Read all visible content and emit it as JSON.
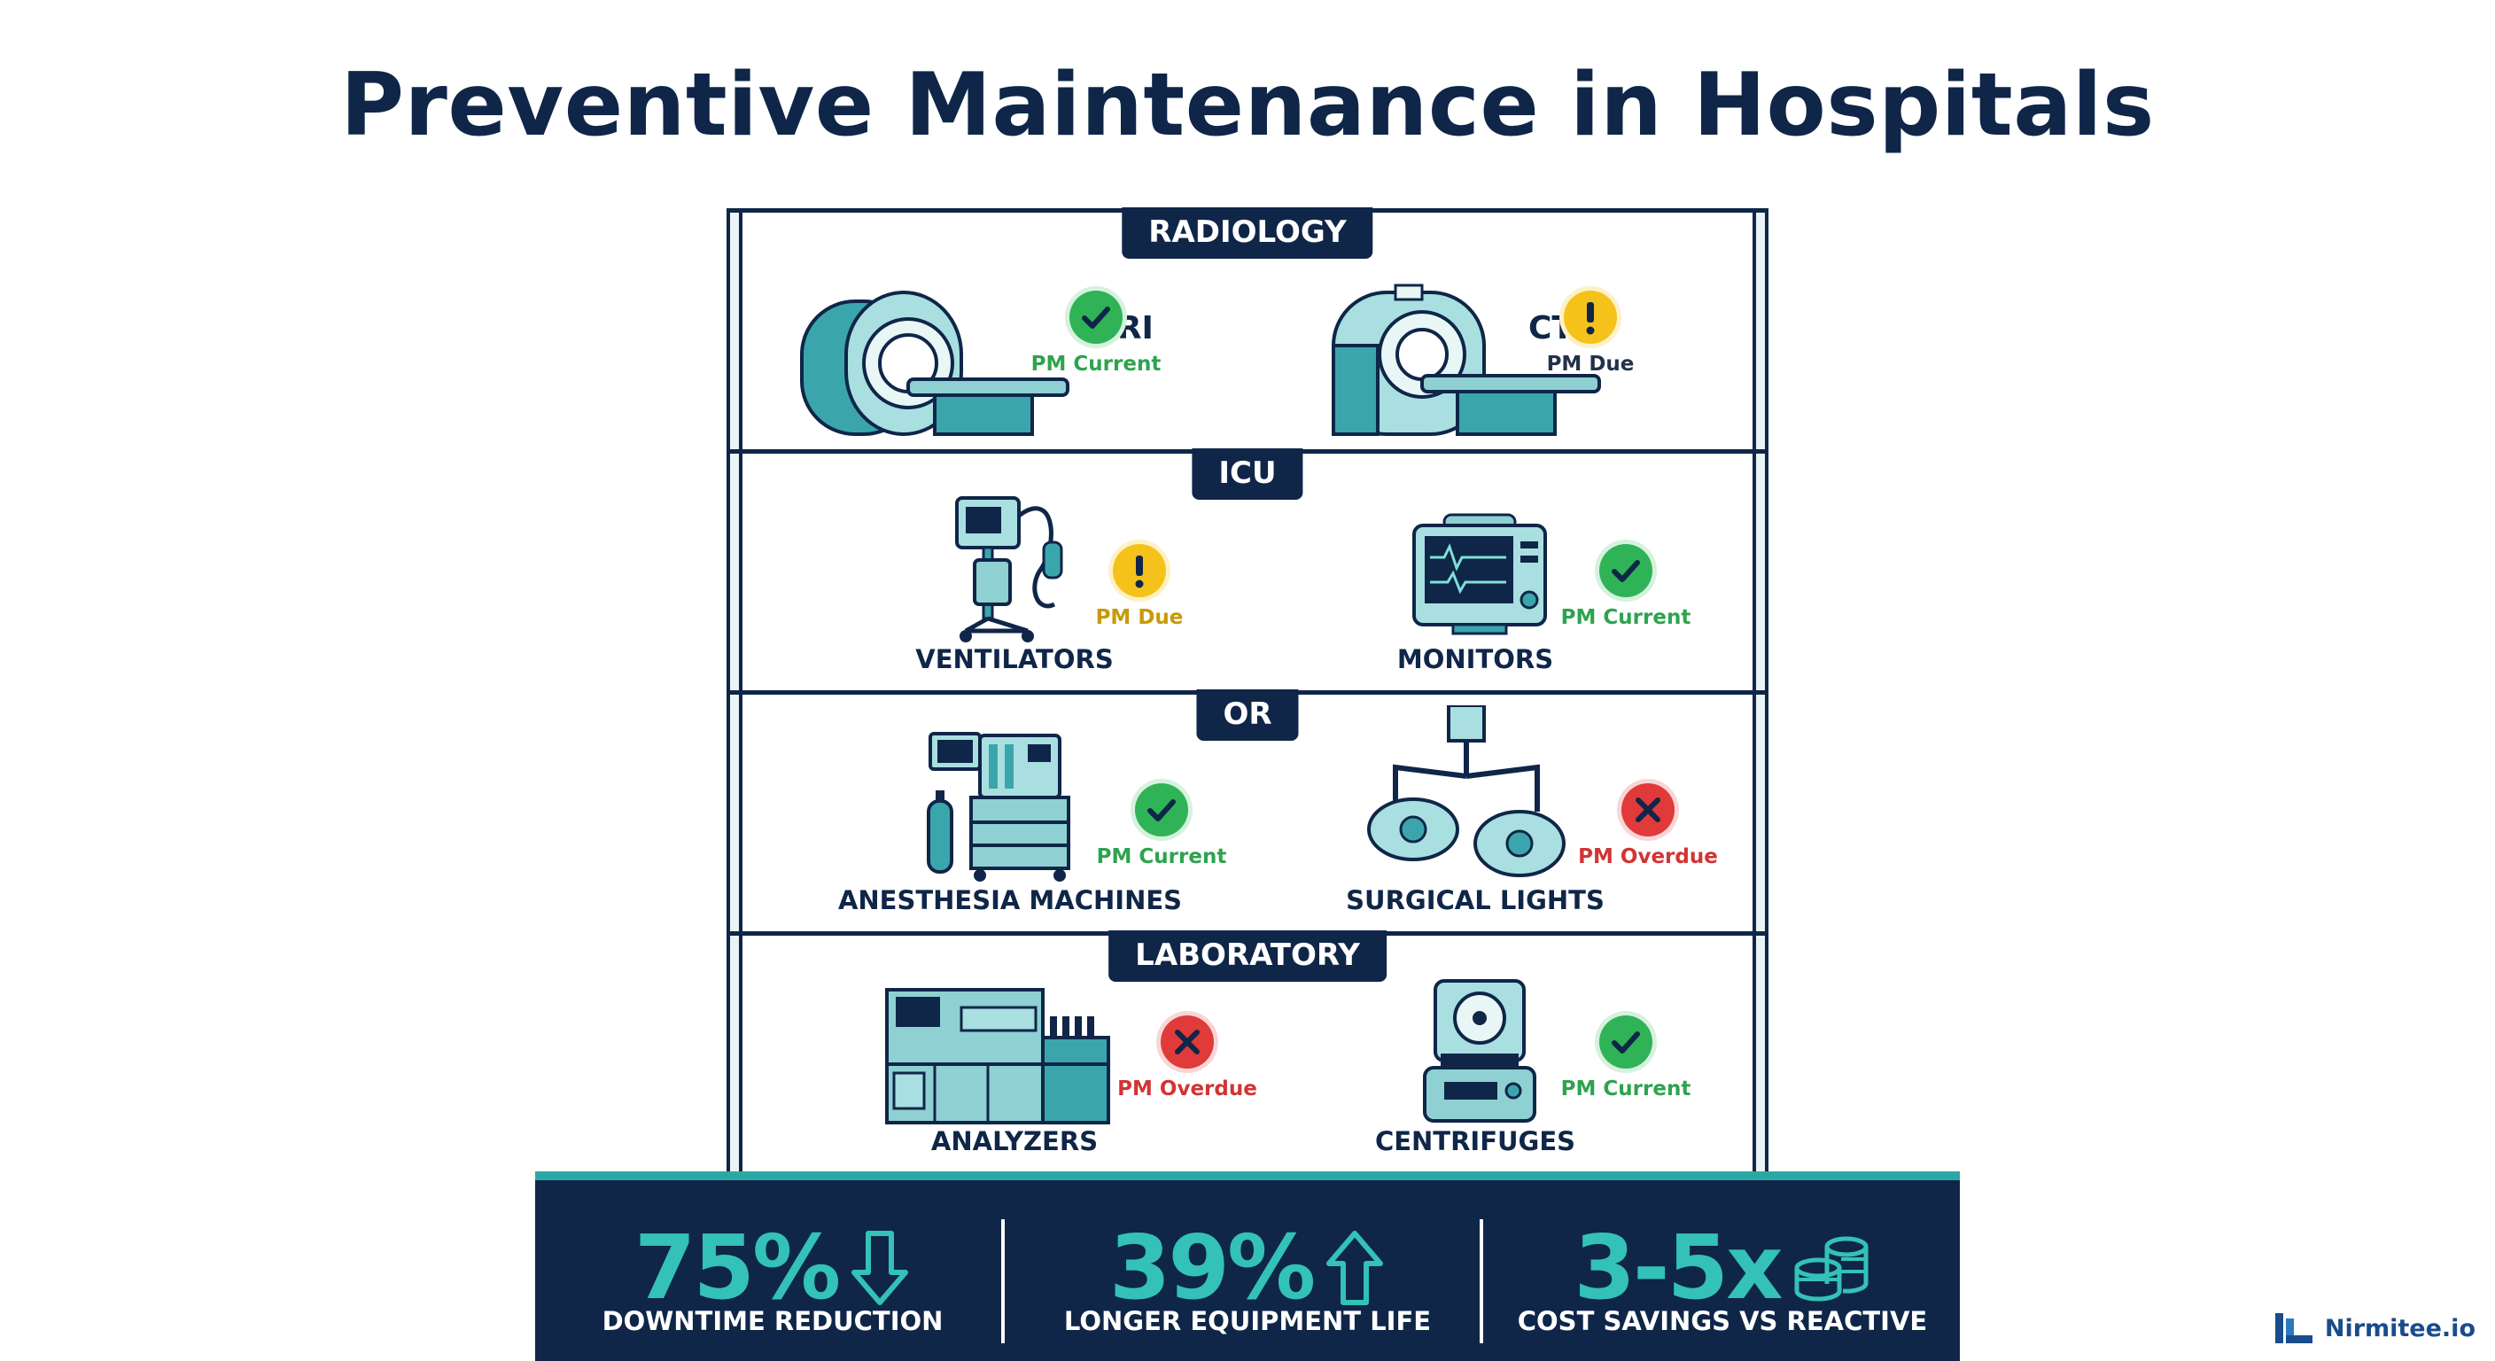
{
  "title": "Preventive Maintenance in Hospitals",
  "departments": [
    {
      "name": "RADIOLOGY",
      "devices": [
        {
          "label": "MRI",
          "status": "PM Current",
          "status_type": "current",
          "icon": "mri-scanner-icon"
        },
        {
          "label": "CT",
          "status": "PM Due",
          "status_type": "due",
          "icon": "ct-scanner-icon"
        }
      ]
    },
    {
      "name": "ICU",
      "devices": [
        {
          "label": "VENTILATORS",
          "status": "PM Due",
          "status_type": "due",
          "icon": "ventilator-icon"
        },
        {
          "label": "MONITORS",
          "status": "PM Current",
          "status_type": "current",
          "icon": "patient-monitor-icon"
        }
      ]
    },
    {
      "name": "OR",
      "devices": [
        {
          "label": "ANESTHESIA MACHINES",
          "status": "PM Current",
          "status_type": "current",
          "icon": "anesthesia-machine-icon"
        },
        {
          "label": "SURGICAL LIGHTS",
          "status": "PM Overdue",
          "status_type": "overdue",
          "icon": "surgical-light-icon"
        }
      ]
    },
    {
      "name": "LABORATORY",
      "devices": [
        {
          "label": "ANALYZERS",
          "status": "PM Overdue",
          "status_type": "overdue",
          "icon": "lab-analyzer-icon"
        },
        {
          "label": "CENTRIFUGES",
          "status": "PM Current",
          "status_type": "current",
          "icon": "centrifuge-icon"
        }
      ]
    }
  ],
  "stats": [
    {
      "value": "75%",
      "label": "DOWNTIME REDUCTION",
      "icon": "arrow-down-icon"
    },
    {
      "value": "39%",
      "label": "LONGER EQUIPMENT LIFE",
      "icon": "arrow-up-icon"
    },
    {
      "value": "3-5x",
      "label": "COST SAVINGS VS REACTIVE",
      "icon": "coin-stack-icon"
    }
  ],
  "brand": {
    "name": "Nirmitee.io",
    "icon": "nirmitee-logo-icon"
  },
  "colors": {
    "navy": "#0f2648",
    "teal": "#2ba8a5",
    "current": "#2fb356",
    "due": "#f5c21b",
    "overdue": "#e03a3a"
  }
}
